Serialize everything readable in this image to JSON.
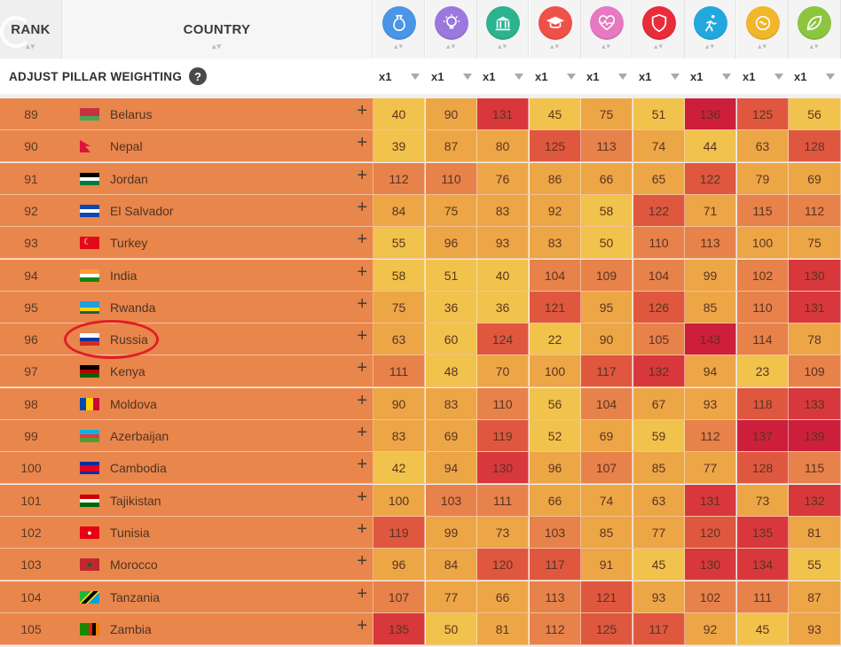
{
  "header": {
    "rank_label": "RANK",
    "country_label": "COUNTRY"
  },
  "pillars": [
    {
      "icon": "wealth-icon",
      "color": "#4a95e6"
    },
    {
      "icon": "lightbulb-icon",
      "color": "#9a78de"
    },
    {
      "icon": "government-icon",
      "color": "#2bb38f"
    },
    {
      "icon": "graduation-cap-icon",
      "color": "#ef5148"
    },
    {
      "icon": "heart-pulse-icon",
      "color": "#e679c2"
    },
    {
      "icon": "shield-icon",
      "color": "#e92c3a"
    },
    {
      "icon": "runner-icon",
      "color": "#23a8de"
    },
    {
      "icon": "social-hands-icon",
      "color": "#f1b62a"
    },
    {
      "icon": "leaf-icon",
      "color": "#8cc63e"
    }
  ],
  "weighting": {
    "label": "ADJUST PILLAR WEIGHTING",
    "help_symbol": "?",
    "weights": [
      "x1",
      "x1",
      "x1",
      "x1",
      "x1",
      "x1",
      "x1",
      "x1",
      "x1"
    ]
  },
  "rows": [
    {
      "rank": "89",
      "country": "Belarus",
      "flag": "belarus",
      "values": [
        "40",
        "90",
        "131",
        "45",
        "75",
        "51",
        "136",
        "125",
        "56"
      ]
    },
    {
      "rank": "90",
      "country": "Nepal",
      "flag": "nepal",
      "values": [
        "39",
        "87",
        "80",
        "125",
        "113",
        "74",
        "44",
        "63",
        "128"
      ]
    },
    {
      "rank": "91",
      "country": "Jordan",
      "flag": "jordan",
      "values": [
        "112",
        "110",
        "76",
        "86",
        "66",
        "65",
        "122",
        "79",
        "69"
      ]
    },
    {
      "rank": "92",
      "country": "El Salvador",
      "flag": "elsalvador",
      "values": [
        "84",
        "75",
        "83",
        "92",
        "58",
        "122",
        "71",
        "115",
        "112"
      ]
    },
    {
      "rank": "93",
      "country": "Turkey",
      "flag": "turkey",
      "values": [
        "55",
        "96",
        "93",
        "83",
        "50",
        "110",
        "113",
        "100",
        "75"
      ]
    },
    {
      "rank": "94",
      "country": "India",
      "flag": "india",
      "values": [
        "58",
        "51",
        "40",
        "104",
        "109",
        "104",
        "99",
        "102",
        "130"
      ]
    },
    {
      "rank": "95",
      "country": "Rwanda",
      "flag": "rwanda",
      "values": [
        "75",
        "36",
        "36",
        "121",
        "95",
        "126",
        "85",
        "110",
        "131"
      ]
    },
    {
      "rank": "96",
      "country": "Russia",
      "flag": "russia",
      "values": [
        "63",
        "60",
        "124",
        "22",
        "90",
        "105",
        "143",
        "114",
        "78"
      ]
    },
    {
      "rank": "97",
      "country": "Kenya",
      "flag": "kenya",
      "values": [
        "111",
        "48",
        "70",
        "100",
        "117",
        "132",
        "94",
        "23",
        "109"
      ]
    },
    {
      "rank": "98",
      "country": "Moldova",
      "flag": "moldova",
      "values": [
        "90",
        "83",
        "110",
        "56",
        "104",
        "67",
        "93",
        "118",
        "133"
      ]
    },
    {
      "rank": "99",
      "country": "Azerbaijan",
      "flag": "azerbaijan",
      "values": [
        "83",
        "69",
        "119",
        "52",
        "69",
        "59",
        "112",
        "137",
        "139"
      ]
    },
    {
      "rank": "100",
      "country": "Cambodia",
      "flag": "cambodia",
      "values": [
        "42",
        "94",
        "130",
        "96",
        "107",
        "85",
        "77",
        "128",
        "115"
      ]
    },
    {
      "rank": "101",
      "country": "Tajikistan",
      "flag": "tajikistan",
      "values": [
        "100",
        "103",
        "111",
        "66",
        "74",
        "63",
        "131",
        "73",
        "132"
      ]
    },
    {
      "rank": "102",
      "country": "Tunisia",
      "flag": "tunisia",
      "values": [
        "119",
        "99",
        "73",
        "103",
        "85",
        "77",
        "120",
        "135",
        "81"
      ]
    },
    {
      "rank": "103",
      "country": "Morocco",
      "flag": "morocco",
      "values": [
        "96",
        "84",
        "120",
        "117",
        "91",
        "45",
        "130",
        "134",
        "55"
      ]
    },
    {
      "rank": "104",
      "country": "Tanzania",
      "flag": "tanzania",
      "values": [
        "107",
        "77",
        "66",
        "113",
        "121",
        "93",
        "102",
        "111",
        "87"
      ]
    },
    {
      "rank": "105",
      "country": "Zambia",
      "flag": "zambia",
      "values": [
        "135",
        "50",
        "81",
        "112",
        "125",
        "117",
        "92",
        "45",
        "93"
      ]
    }
  ],
  "highlighted_country": "Russia",
  "colors": {
    "row_bg": "#e9864c",
    "scale_low": "#f1c24c",
    "scale_mid": "#e98a45",
    "scale_high": "#d6393a",
    "scale_top": "#c81d3c"
  }
}
